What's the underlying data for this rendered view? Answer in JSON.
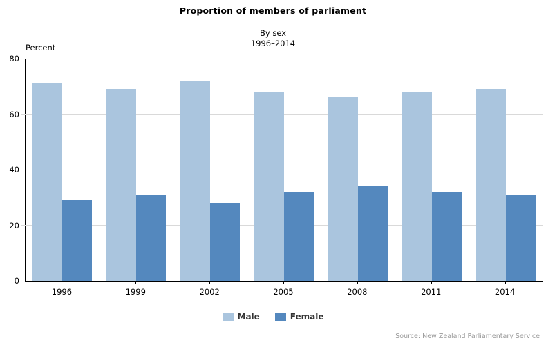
{
  "title": "Proportion of members of parliament",
  "subtitle_line1": "By sex",
  "subtitle_line2": "1996–2014",
  "y_axis_unit": "Percent",
  "source_note": "Source: New Zealand Parliamentary Service",
  "colors": {
    "male": "#aac5de",
    "female": "#5488be",
    "gridline": "#d9d9d9",
    "axis": "#000000",
    "source_text": "#999999"
  },
  "chart_data": {
    "type": "bar",
    "title": "Proportion of members of parliament",
    "subtitle": "By sex 1996–2014",
    "categories": [
      "1996",
      "1999",
      "2002",
      "2005",
      "2008",
      "2011",
      "2014"
    ],
    "series": [
      {
        "name": "Male",
        "color": "#aac5de",
        "values": [
          71,
          69,
          72,
          68,
          66,
          68,
          69
        ]
      },
      {
        "name": "Female",
        "color": "#5488be",
        "values": [
          29,
          31,
          28,
          32,
          34,
          32,
          31
        ]
      }
    ],
    "xlabel": "",
    "ylabel": "Percent",
    "ylim": [
      0,
      80
    ],
    "yticks": [
      0,
      20,
      40,
      60,
      80
    ],
    "grid": true,
    "legend_position": "bottom"
  }
}
